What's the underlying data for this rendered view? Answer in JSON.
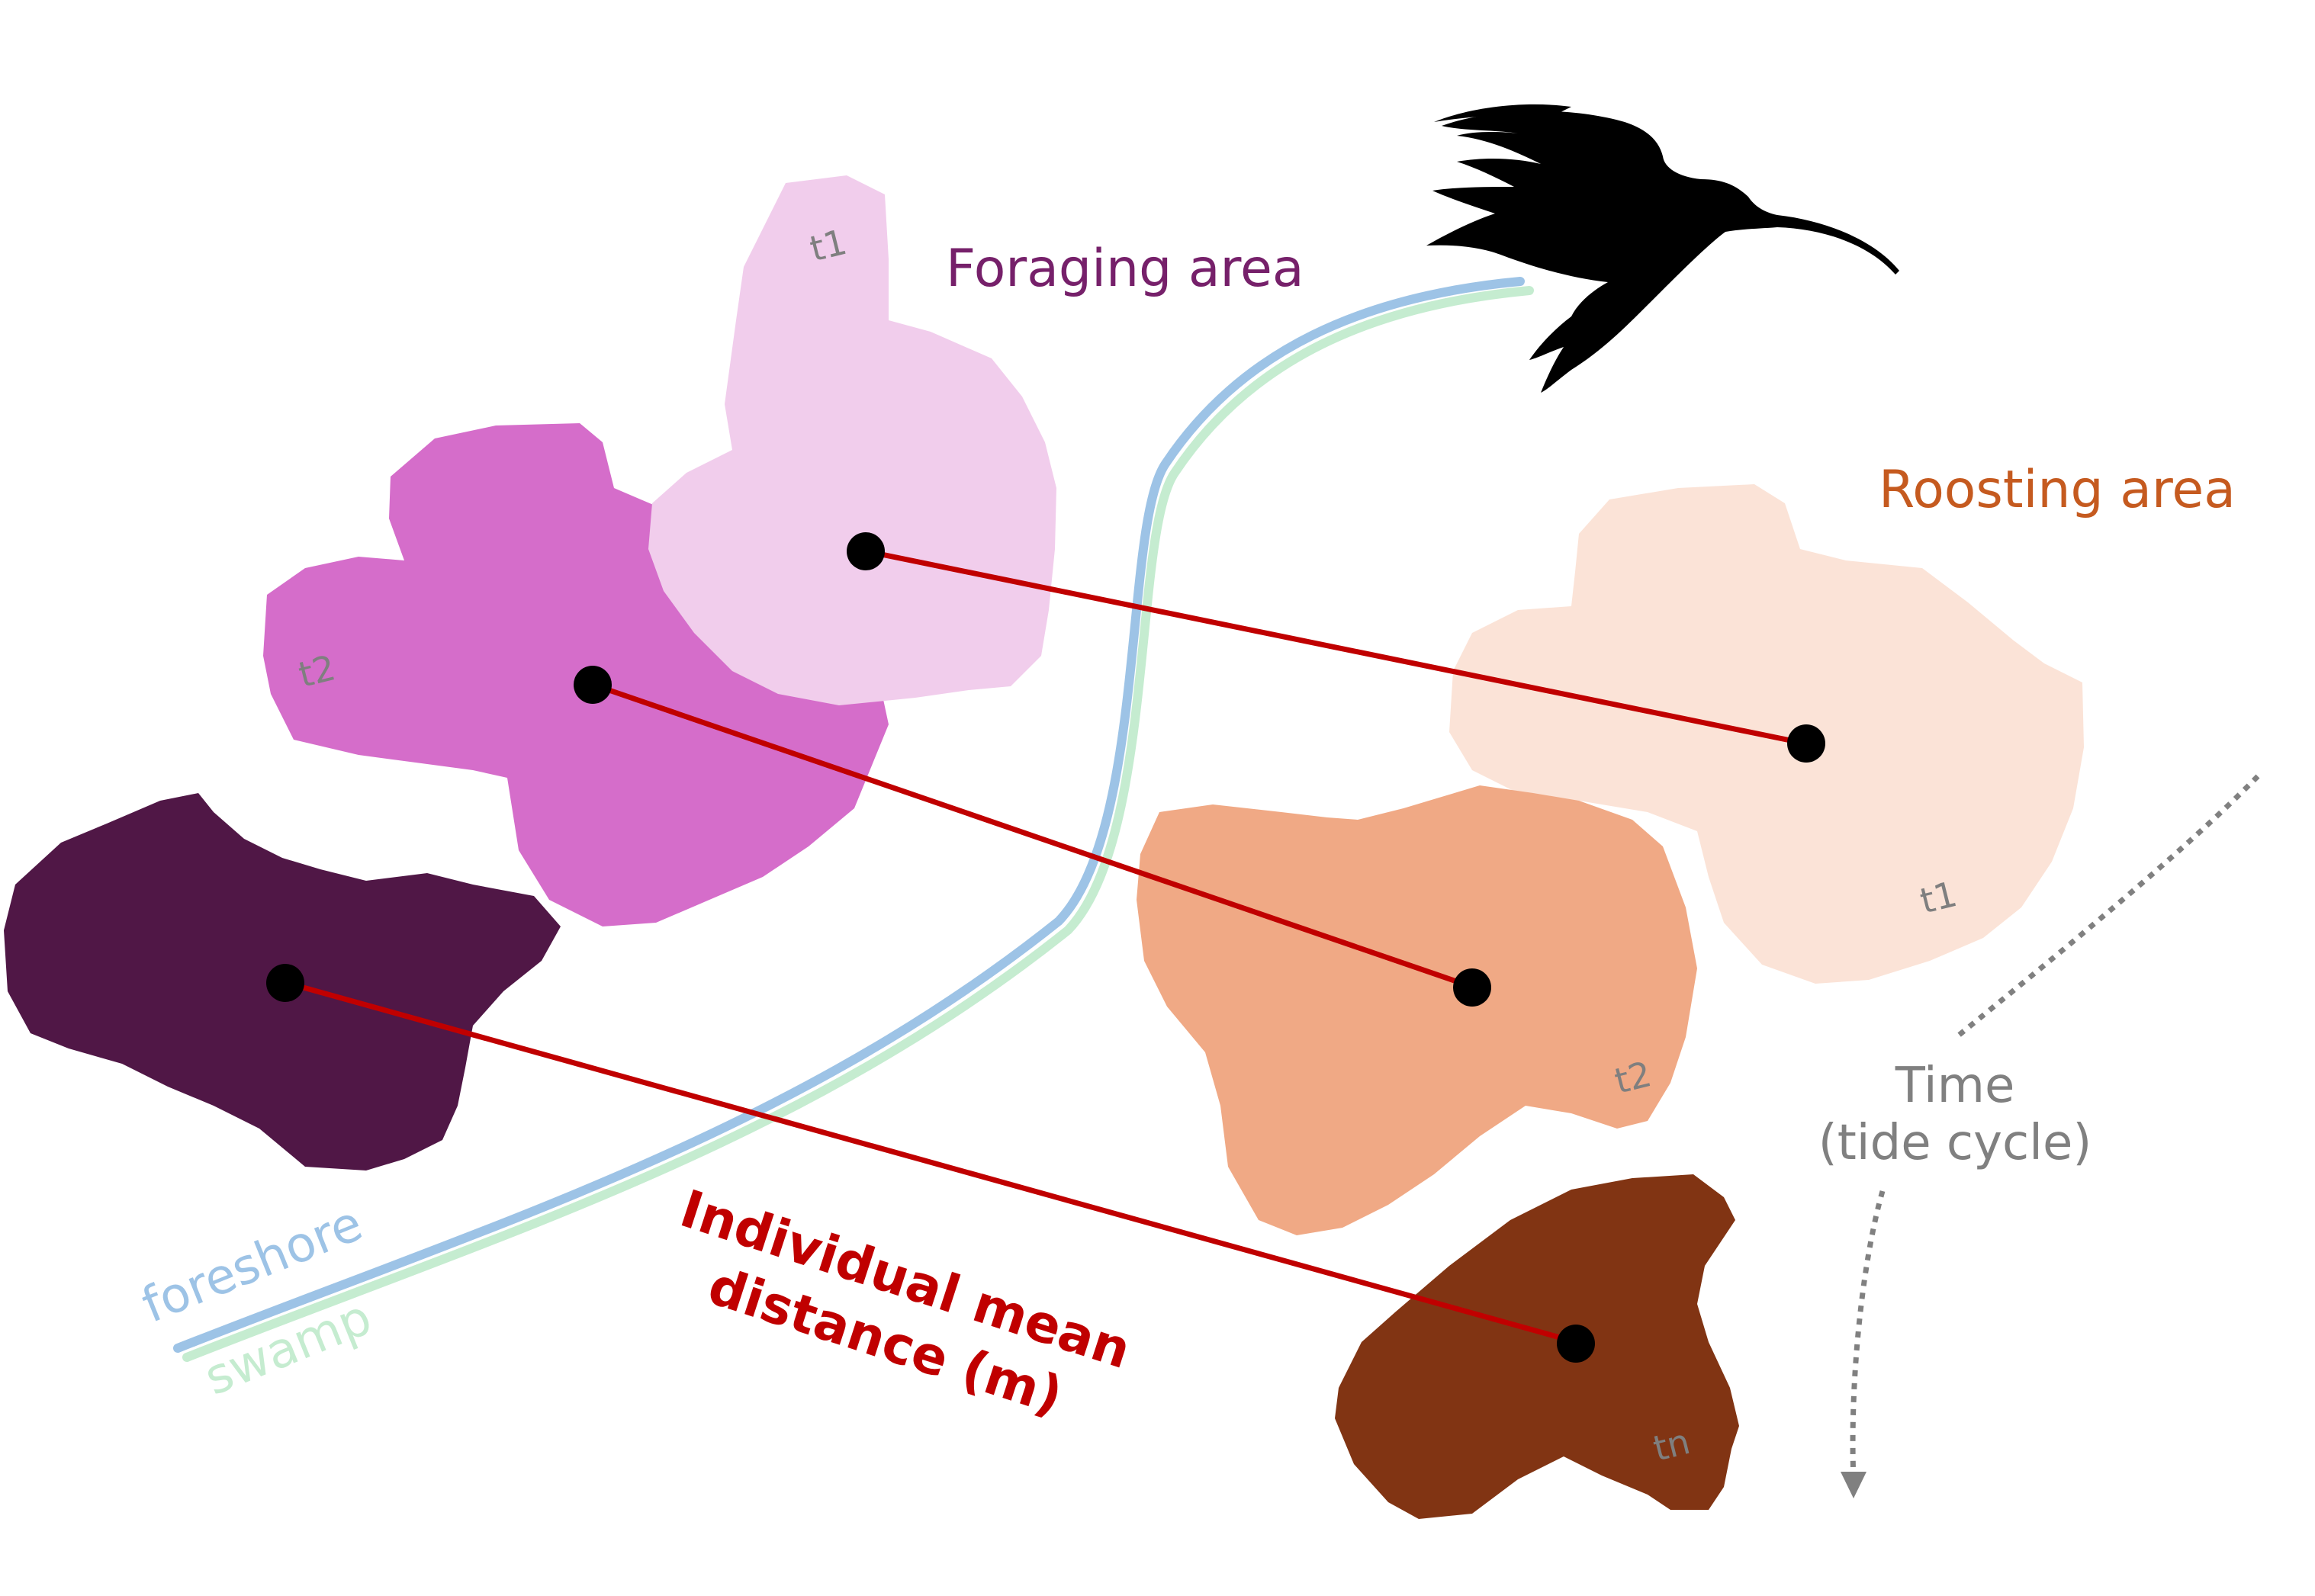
{
  "headings": {
    "foraging": "Foraging area",
    "roosting": "Roosting area",
    "time_line1": "Time",
    "time_line2": "(tide cycle)",
    "distance_line1": "Individual mean",
    "distance_line2": "distance (m)"
  },
  "shoreline": {
    "foreshore_label": "foreshore",
    "swamp_label": "swamp"
  },
  "foraging_patches": [
    {
      "label": "t1"
    },
    {
      "label": "t2"
    },
    {
      "label": ""
    }
  ],
  "roosting_patches": [
    {
      "label": "t1"
    },
    {
      "label": "t2"
    },
    {
      "label": "tn"
    }
  ],
  "colors": {
    "foraging_t1": "#f1cdec",
    "foraging_t2": "#d56dca",
    "foraging_tn": "#501746",
    "roosting_t1": "#fbe3d7",
    "roosting_t2": "#f0a985",
    "roosting_tn": "#813413",
    "foraging_title": "#76206a",
    "roosting_title": "#c55a1f",
    "arrow": "#c00000",
    "foreshore": "#9dc3e6",
    "swamp": "#c5ecd0",
    "time": "#808080",
    "patch_label": "#7f7f7f",
    "centroid": "#000000",
    "bird": "#000000"
  },
  "icons": {
    "bird": "bird-silhouette-icon"
  }
}
